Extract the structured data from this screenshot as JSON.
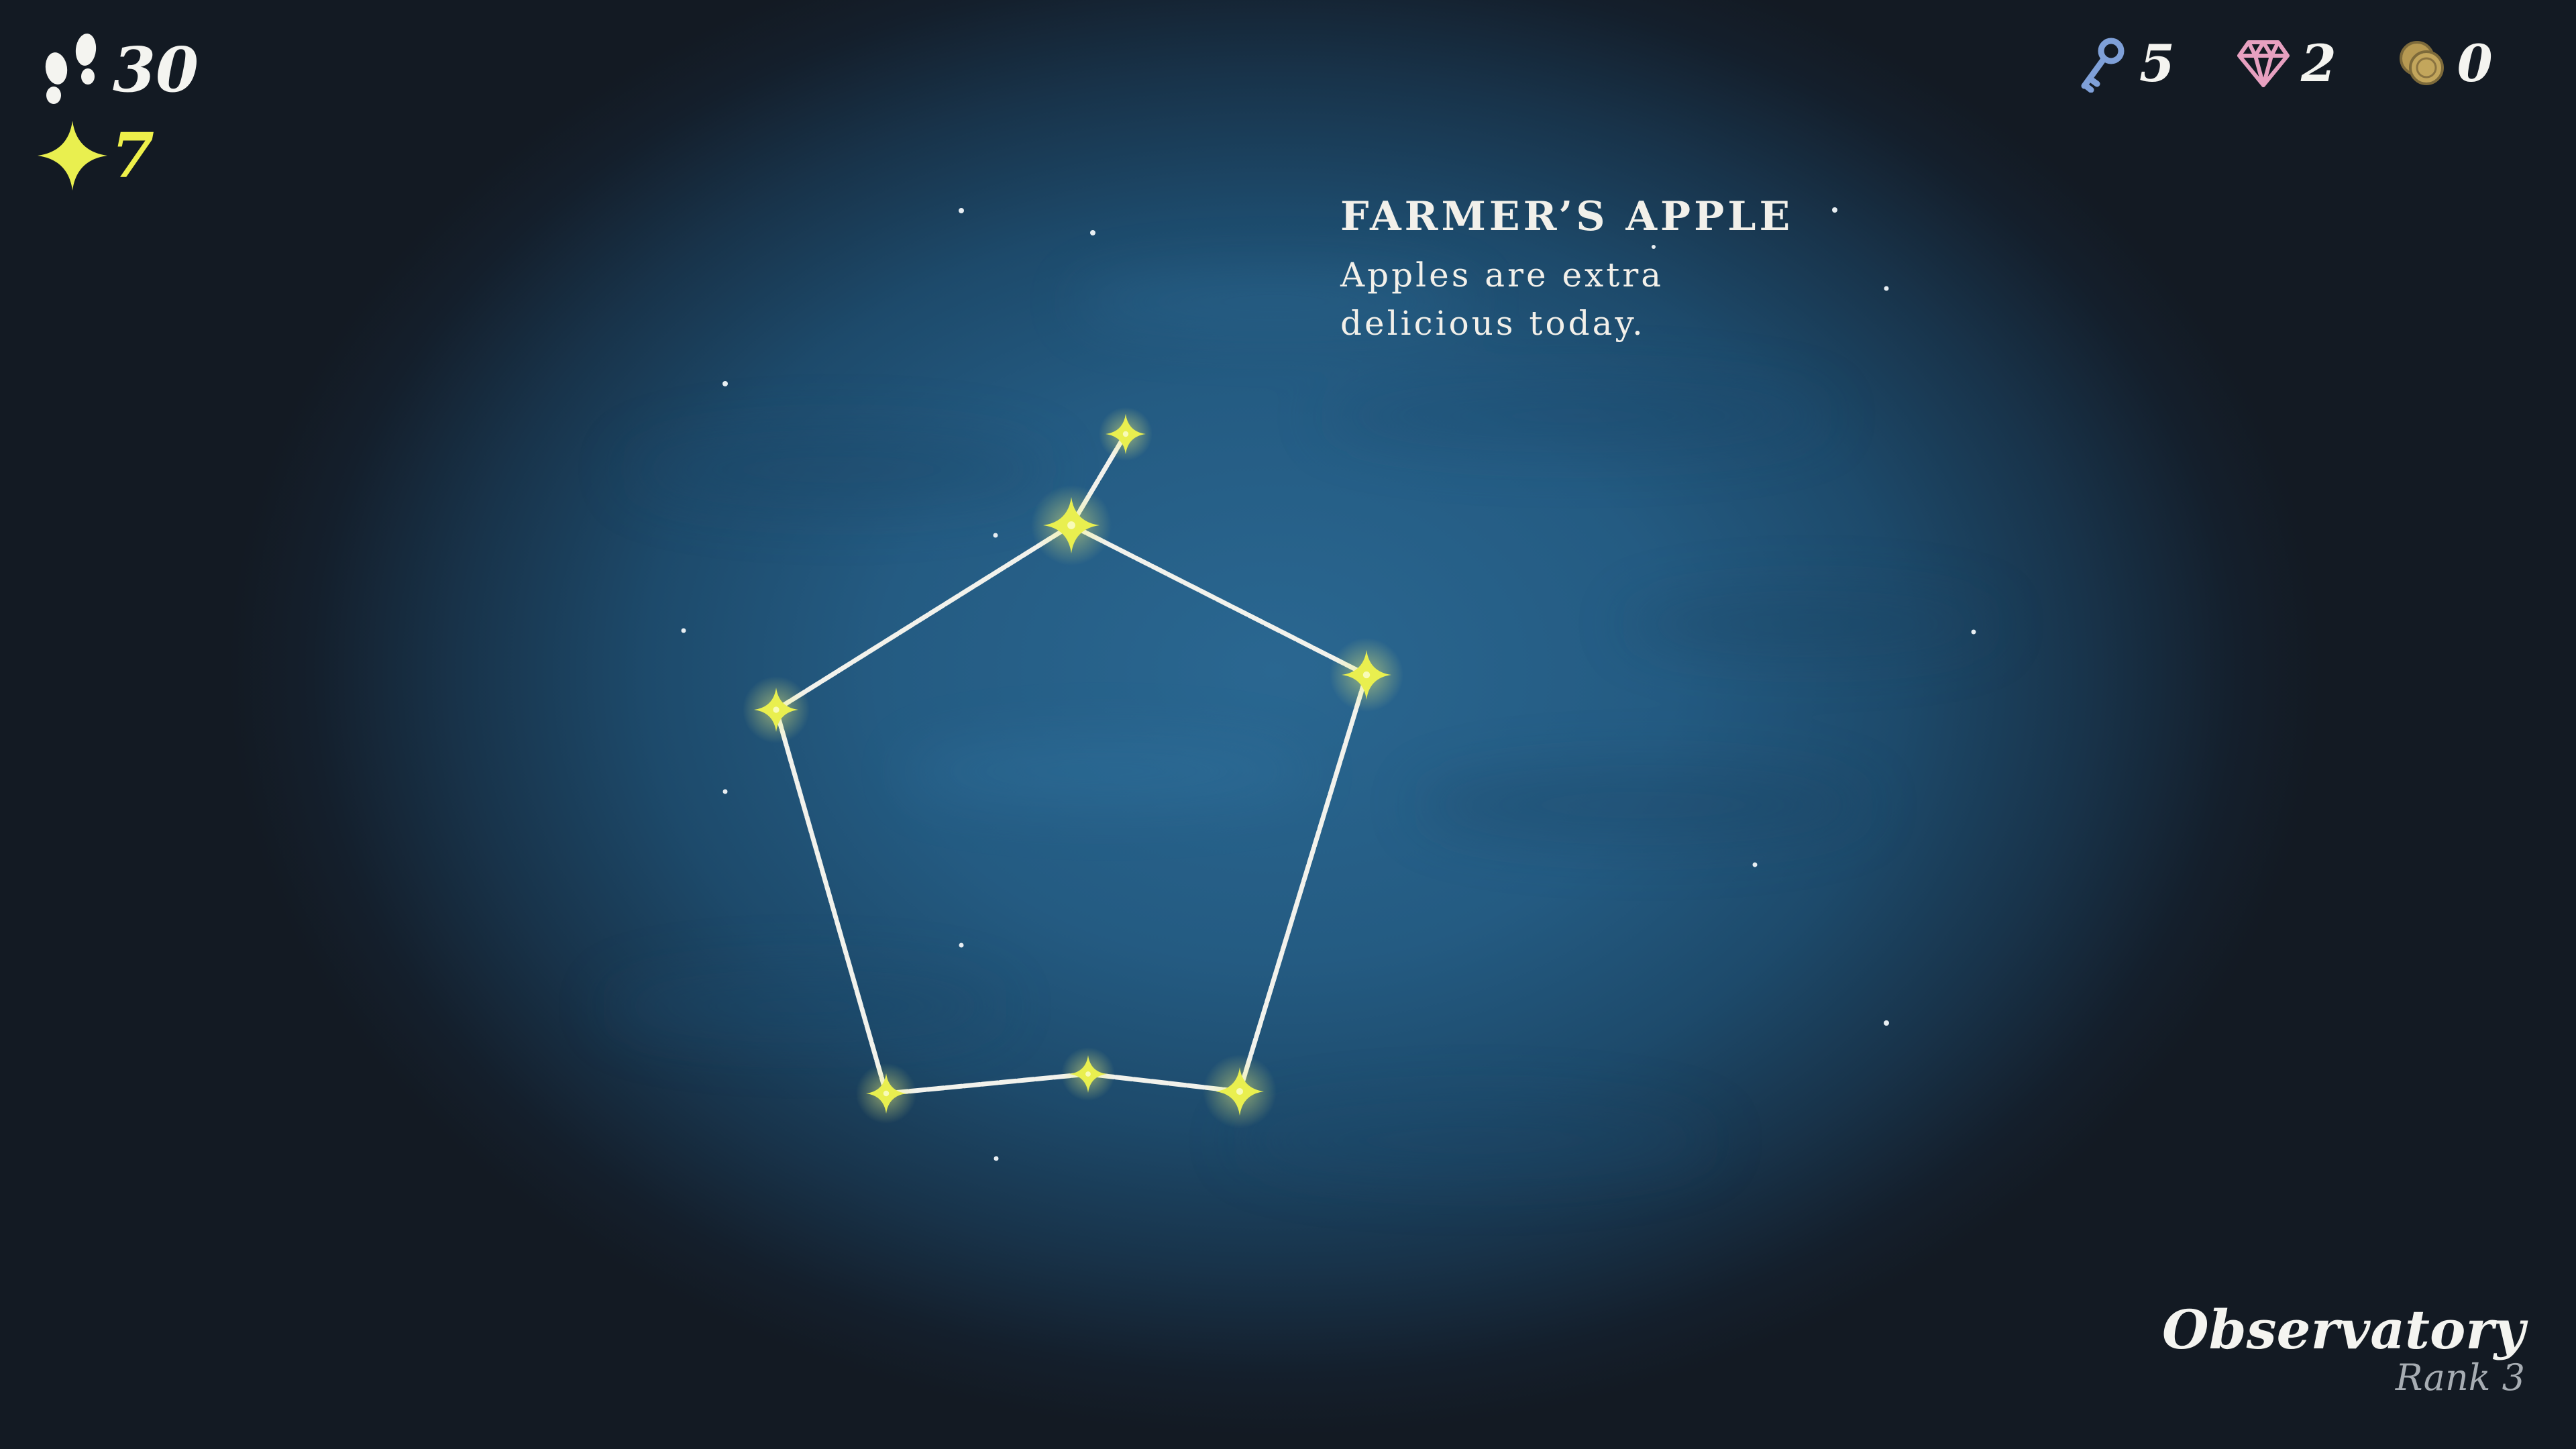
{
  "hud": {
    "steps": "30",
    "stars": "7",
    "keys": "5",
    "gems": "2",
    "coins": "0",
    "icons": {
      "steps": "footprints-icon",
      "stars": "sparkle-star-icon",
      "keys": "key-icon",
      "gems": "gem-icon",
      "coins": "coins-icon"
    }
  },
  "constellation": {
    "title": "FARMER’S APPLE",
    "description_lines": [
      "Apples are extra",
      "delicious today."
    ]
  },
  "location": {
    "name": "Observatory",
    "rank": "Rank 3"
  },
  "colors": {
    "star": "#e9ef4f",
    "line": "#f2f2ec",
    "sky": "#2a6791",
    "vignette": "#131a23",
    "key": "#7fa0d8",
    "gem": "#e7a0c0",
    "coin": "#b79a52"
  }
}
